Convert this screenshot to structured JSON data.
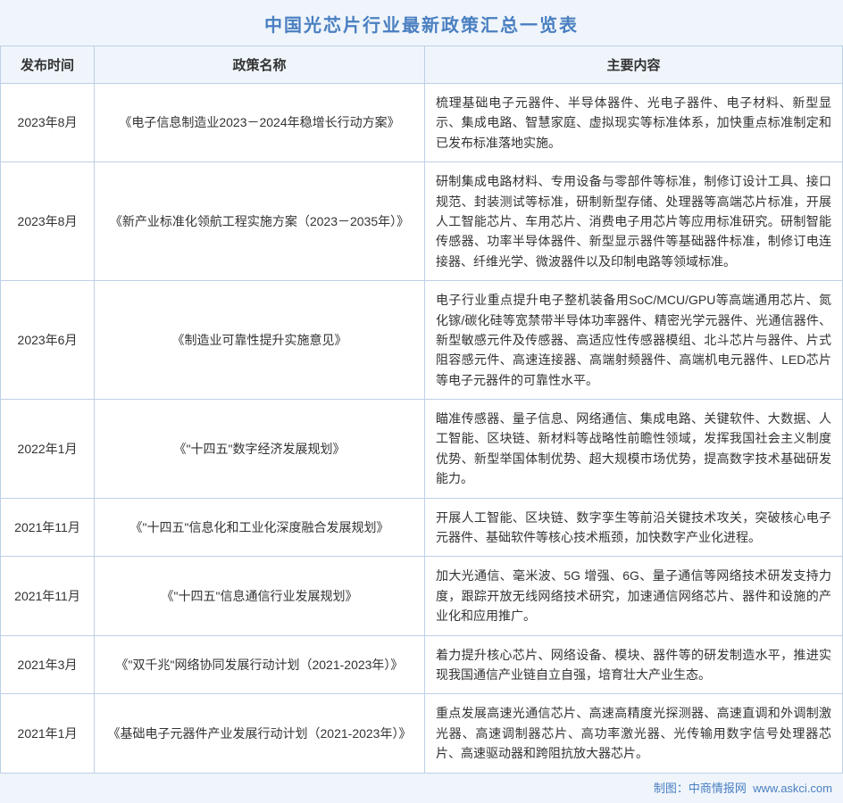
{
  "title": "中国光芯片行业最新政策汇总一览表",
  "footer_prefix": "制图：",
  "footer_source": "中商情报网",
  "footer_url": "www.askci.com",
  "colors": {
    "header_bg": "#eff5fb",
    "cell_bg": "#ffffff",
    "border": "#bcd0e6",
    "title_color": "#4a7fc1",
    "text_color": "#333333"
  },
  "columns": [
    "发布时间",
    "政策名称",
    "主要内容"
  ],
  "rows": [
    {
      "date": "2023年8月",
      "name": "《电子信息制造业2023－2024年稳增长行动方案》",
      "content": "梳理基础电子元器件、半导体器件、光电子器件、电子材料、新型显示、集成电路、智慧家庭、虚拟现实等标准体系，加快重点标准制定和已发布标准落地实施。"
    },
    {
      "date": "2023年8月",
      "name": "《新产业标准化领航工程实施方案（2023－2035年）》",
      "content": "研制集成电路材料、专用设备与零部件等标准，制修订设计工具、接口规范、封装测试等标准，研制新型存储、处理器等高端芯片标准，开展人工智能芯片、车用芯片、消费电子用芯片等应用标准研究。研制智能传感器、功率半导体器件、新型显示器件等基础器件标准，制修订电连接器、纤维光学、微波器件以及印制电路等领域标准。"
    },
    {
      "date": "2023年6月",
      "name": "《制造业可靠性提升实施意见》",
      "content": "电子行业重点提升电子整机装备用SoC/MCU/GPU等高端通用芯片、氮化镓/碳化硅等宽禁带半导体功率器件、精密光学元器件、光通信器件、新型敏感元件及传感器、高适应性传感器模组、北斗芯片与器件、片式阻容感元件、高速连接器、高端射频器件、高端机电元器件、LED芯片等电子元器件的可靠性水平。"
    },
    {
      "date": "2022年1月",
      "name": "《\"十四五\"数字经济发展规划》",
      "content": "瞄准传感器、量子信息、网络通信、集成电路、关键软件、大数据、人工智能、区块链、新材料等战略性前瞻性领域，发挥我国社会主义制度优势、新型举国体制优势、超大规模市场优势，提高数字技术基础研发能力。"
    },
    {
      "date": "2021年11月",
      "name": "《\"十四五\"信息化和工业化深度融合发展规划》",
      "content": "开展人工智能、区块链、数字孪生等前沿关键技术攻关，突破核心电子元器件、基础软件等核心技术瓶颈，加快数字产业化进程。"
    },
    {
      "date": "2021年11月",
      "name": "《\"十四五\"信息通信行业发展规划》",
      "content": "加大光通信、毫米波、5G 增强、6G、量子通信等网络技术研发支持力度，跟踪开放无线网络技术研究，加速通信网络芯片、器件和设施的产业化和应用推广。"
    },
    {
      "date": "2021年3月",
      "name": "《\"双千兆\"网络协同发展行动计划（2021-2023年）》",
      "content": "着力提升核心芯片、网络设备、模块、器件等的研发制造水平，推进实现我国通信产业链自立自强，培育壮大产业生态。"
    },
    {
      "date": "2021年1月",
      "name": "《基础电子元器件产业发展行动计划（2021-2023年）》",
      "content": "重点发展高速光通信芯片、高速高精度光探测器、高速直调和外调制激光器、高速调制器芯片、高功率激光器、光传输用数字信号处理器芯片、高速驱动器和跨阻抗放大器芯片。"
    }
  ]
}
